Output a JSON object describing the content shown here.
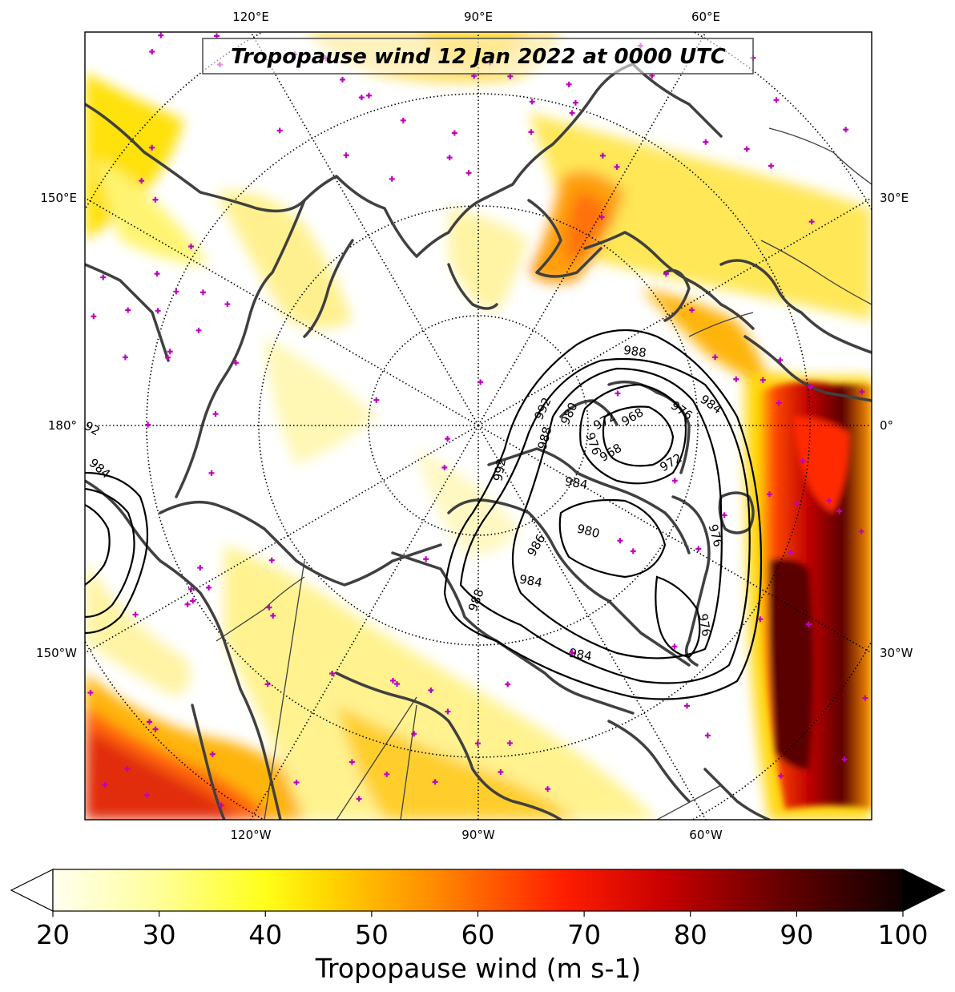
{
  "title": "Tropopause wind 12 Jan 2022 at 0000 UTC",
  "colors": {
    "coast": "#404040",
    "border": "#404040",
    "contour": "#000000",
    "station_marker": "#c000c0",
    "graticule": "#000000"
  },
  "longitude_labels": {
    "top": [
      "120°E",
      "90°E",
      "60°E"
    ],
    "bottom": [
      "120°W",
      "90°W",
      "60°W"
    ],
    "left": [
      "150°E",
      "180°",
      "150°W"
    ],
    "right": [
      "30°E",
      "0°",
      "30°W"
    ]
  },
  "pressure_contour_labels": [
    "988",
    "992",
    "980",
    "972",
    "968",
    "976",
    "984",
    "968",
    "972",
    "976",
    "984",
    "988",
    "992",
    "984",
    "980",
    "984",
    "986",
    "976",
    "988",
    "976",
    "92",
    "984"
  ],
  "colorbar": {
    "label": "Tropopause wind (m s-1)",
    "min": 20,
    "max": 100,
    "ticks": [
      "20",
      "30",
      "40",
      "50",
      "60",
      "70",
      "80",
      "90",
      "100"
    ],
    "extend": "both",
    "colormap": "hot_r"
  },
  "contour_levels_hPa": [
    968,
    972,
    976,
    980,
    984,
    988,
    992
  ]
}
